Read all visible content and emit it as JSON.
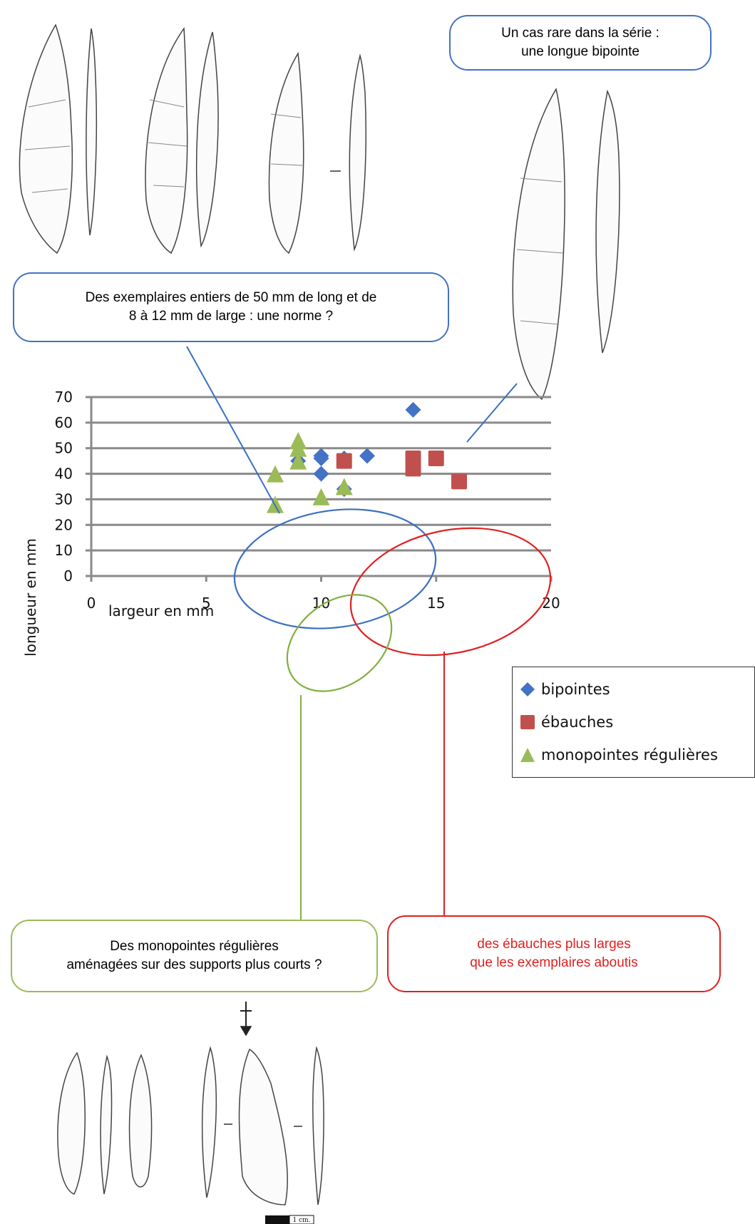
{
  "chart_data": {
    "type": "scatter",
    "xlabel": "largeur en mm",
    "ylabel": "longueur en mm",
    "xlim": [
      0,
      20
    ],
    "ylim": [
      0,
      70
    ],
    "x_ticks": [
      "0",
      "5",
      "10",
      "15",
      "20"
    ],
    "y_ticks": [
      "0",
      "10",
      "20",
      "30",
      "40",
      "50",
      "60",
      "70"
    ],
    "grid": "horizontal",
    "legend_position": "right",
    "series": [
      {
        "name": "bipointes",
        "marker": "diamond",
        "color": "#4472C4",
        "points": [
          [
            9,
            45
          ],
          [
            10,
            47
          ],
          [
            10,
            46
          ],
          [
            10,
            40
          ],
          [
            11,
            46
          ],
          [
            11,
            34
          ],
          [
            12,
            47
          ],
          [
            14,
            65
          ]
        ]
      },
      {
        "name": "ébauches",
        "marker": "square",
        "color": "#C0504D",
        "points": [
          [
            11,
            45
          ],
          [
            14,
            46
          ],
          [
            14,
            42
          ],
          [
            15,
            46
          ],
          [
            16,
            37
          ]
        ]
      },
      {
        "name": "monopointes régulières",
        "marker": "triangle",
        "color": "#9BBB59",
        "points": [
          [
            8,
            40
          ],
          [
            8,
            28
          ],
          [
            9,
            53
          ],
          [
            9,
            50
          ],
          [
            9,
            45
          ],
          [
            10,
            31
          ],
          [
            11,
            35
          ]
        ]
      }
    ]
  },
  "callouts": {
    "bipointe_long": {
      "line1": "Un cas rare dans la série :",
      "line2": "une longue bipointe",
      "color": "#4472C4"
    },
    "norme": {
      "line1": "Des exemplaires entiers de 50 mm de long et de",
      "line2": "8 à 12 mm de large : une norme ?",
      "color": "#4472C4"
    },
    "monopointes": {
      "line1": "Des monopointes régulières",
      "line2": "aménagées sur des supports plus courts ?",
      "color": "#9BBB59"
    },
    "ebauches": {
      "line1": "des ébauches plus larges",
      "line2": "que les exemplaires aboutis",
      "color": "#E02020"
    }
  },
  "scale_bar": {
    "label": "1 cm."
  }
}
